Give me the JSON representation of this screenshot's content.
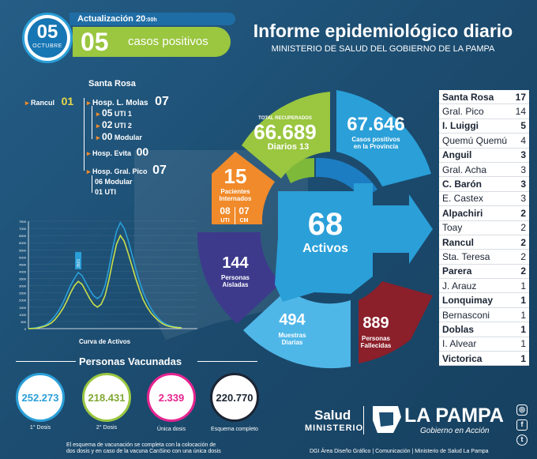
{
  "header": {
    "date_day": "05",
    "date_month": "OCTUBRE",
    "update_label": "Actualización",
    "update_time": "20",
    "update_time_suffix": ":00h",
    "positive_count": "05",
    "positive_label": "casos positivos",
    "title": "Informe epidemiológico diario",
    "subtitle": "MINISTERIO DE SALUD DEL GOBIERNO DE LA PAMPA"
  },
  "tree": {
    "title": "Santa Rosa",
    "rancul_label": "Rancul",
    "rancul_value": "01",
    "molas_label": "Hosp. L. Molas",
    "molas_value": "07",
    "uti1_value": "05",
    "uti1_label": "UTI 1",
    "uti2_value": "02",
    "uti2_label": "UTI 2",
    "modular_value": "00",
    "modular_label": "Modular",
    "evita_label": "Hosp. Evita",
    "evita_value": "00",
    "pico_label": "Hosp. Gral. Pico",
    "pico_value": "07",
    "pico_modular": "06 Modular",
    "pico_uti": "01 UTI"
  },
  "ring": {
    "recovered_title": "TOTAL RECUPERADOS",
    "recovered_value": "66.689",
    "recovered_daily_label": "Diarios",
    "recovered_daily_value": "13",
    "positives_value": "67.646",
    "positives_label_1": "Casos positivos",
    "positives_label_2": "en la Provincia",
    "internados_value": "15",
    "internados_label_1": "Pacientes",
    "internados_label_2": "Internados",
    "uti_value": "08",
    "uti_label": "UTI",
    "cm_value": "07",
    "cm_label": "CM",
    "aisladas_value": "144",
    "aisladas_label_1": "Personas",
    "aisladas_label_2": "Aisladas",
    "muestras_value": "494",
    "muestras_label_1": "Muestras",
    "muestras_label_2": "Diarias",
    "fallecidas_value": "889",
    "fallecidas_label_1": "Personas",
    "fallecidas_label_2": "Fallecidas",
    "activos_value": "68",
    "activos_label": "Activos"
  },
  "localities": [
    {
      "name": "Santa Rosa",
      "value": "17",
      "bold": true
    },
    {
      "name": "Gral. Pico",
      "value": "14",
      "bold": false
    },
    {
      "name": "I. Luiggi",
      "value": "5",
      "bold": true
    },
    {
      "name": "Quemú Quemú",
      "value": "4",
      "bold": false
    },
    {
      "name": "Anguil",
      "value": "3",
      "bold": true
    },
    {
      "name": "Gral. Acha",
      "value": "3",
      "bold": false
    },
    {
      "name": "C. Barón",
      "value": "3",
      "bold": true
    },
    {
      "name": "E. Castex",
      "value": "3",
      "bold": false
    },
    {
      "name": "Alpachiri",
      "value": "2",
      "bold": true
    },
    {
      "name": "Toay",
      "value": "2",
      "bold": false
    },
    {
      "name": "Rancul",
      "value": "2",
      "bold": true
    },
    {
      "name": "Sta. Teresa",
      "value": "2",
      "bold": false
    },
    {
      "name": "Parera",
      "value": "2",
      "bold": true
    },
    {
      "name": "J. Arauz",
      "value": "1",
      "bold": false
    },
    {
      "name": "Lonquimay",
      "value": "1",
      "bold": true
    },
    {
      "name": "Bernasconi",
      "value": "1",
      "bold": false
    },
    {
      "name": "Doblas",
      "value": "1",
      "bold": true
    },
    {
      "name": "I. Alvear",
      "value": "1",
      "bold": false
    },
    {
      "name": "Victorica",
      "value": "1",
      "bold": true
    }
  ],
  "chart": {
    "label": "Curva de Activos",
    "peak_label": "3921",
    "ticks": [
      "7500",
      "7000",
      "6500",
      "6000",
      "5500",
      "5000",
      "4500",
      "4000",
      "3500",
      "3000",
      "2500",
      "2000",
      "1500",
      "1000",
      "500",
      "0"
    ]
  },
  "chart_data": {
    "type": "line",
    "xlabel": "Curva de Activos",
    "ylim": [
      0,
      7500
    ],
    "series": [
      {
        "values": [
          0,
          20,
          60,
          120,
          200,
          350,
          600,
          900,
          1300,
          1800,
          2400,
          3000,
          3500,
          3921,
          3700,
          3200,
          2700,
          2300,
          2100,
          2300,
          3000,
          4200,
          5600,
          6800,
          7400,
          7000,
          6200,
          5200,
          4200,
          3300,
          2500,
          1900,
          1400,
          1000,
          700,
          450,
          300,
          200,
          130,
          90,
          68
        ]
      },
      {
        "values": [
          0,
          10,
          30,
          80,
          150,
          250,
          400,
          650,
          1000,
          1400,
          1900,
          2500,
          3000,
          3300,
          3100,
          2600,
          2100,
          1700,
          1500,
          1700,
          2300,
          3400,
          4700,
          5900,
          6500,
          6100,
          5300,
          4400,
          3500,
          2700,
          2000,
          1500,
          1100,
          800,
          550,
          350,
          220,
          150,
          100,
          70,
          50
        ]
      }
    ]
  },
  "vaccines": {
    "title": "Personas Vacunadas",
    "dose1_value": "252.273",
    "dose1_label": "1° Dosis",
    "dose2_value": "218.431",
    "dose2_label": "2° Dosis",
    "single_value": "2.339",
    "single_label": "Única dosis",
    "full_value": "220.770",
    "full_label": "Esquema completo",
    "note_1": "El esquema de vacunación se completa con la colocación de",
    "note_2": "dos dosis y en caso de la vacuna CanSino con una única dosis"
  },
  "footer": {
    "salud": "Salud",
    "ministerio": "MINISTERIO",
    "la_pampa": "LA PAMPA",
    "gobierno": "Gobierno en Acción",
    "credits": "DGI Área Diseño Gráfico  |  Comunicación  |  Ministerio de Salud La Pampa"
  },
  "colors": {
    "green": "#9ac640",
    "blue": "#2a9fd8",
    "orange": "#f08a2a",
    "purple": "#3d3a8c",
    "red": "#8b1f2a",
    "light_blue": "#4fb7e8",
    "pink": "#e6238f",
    "dark": "#1b2433"
  }
}
